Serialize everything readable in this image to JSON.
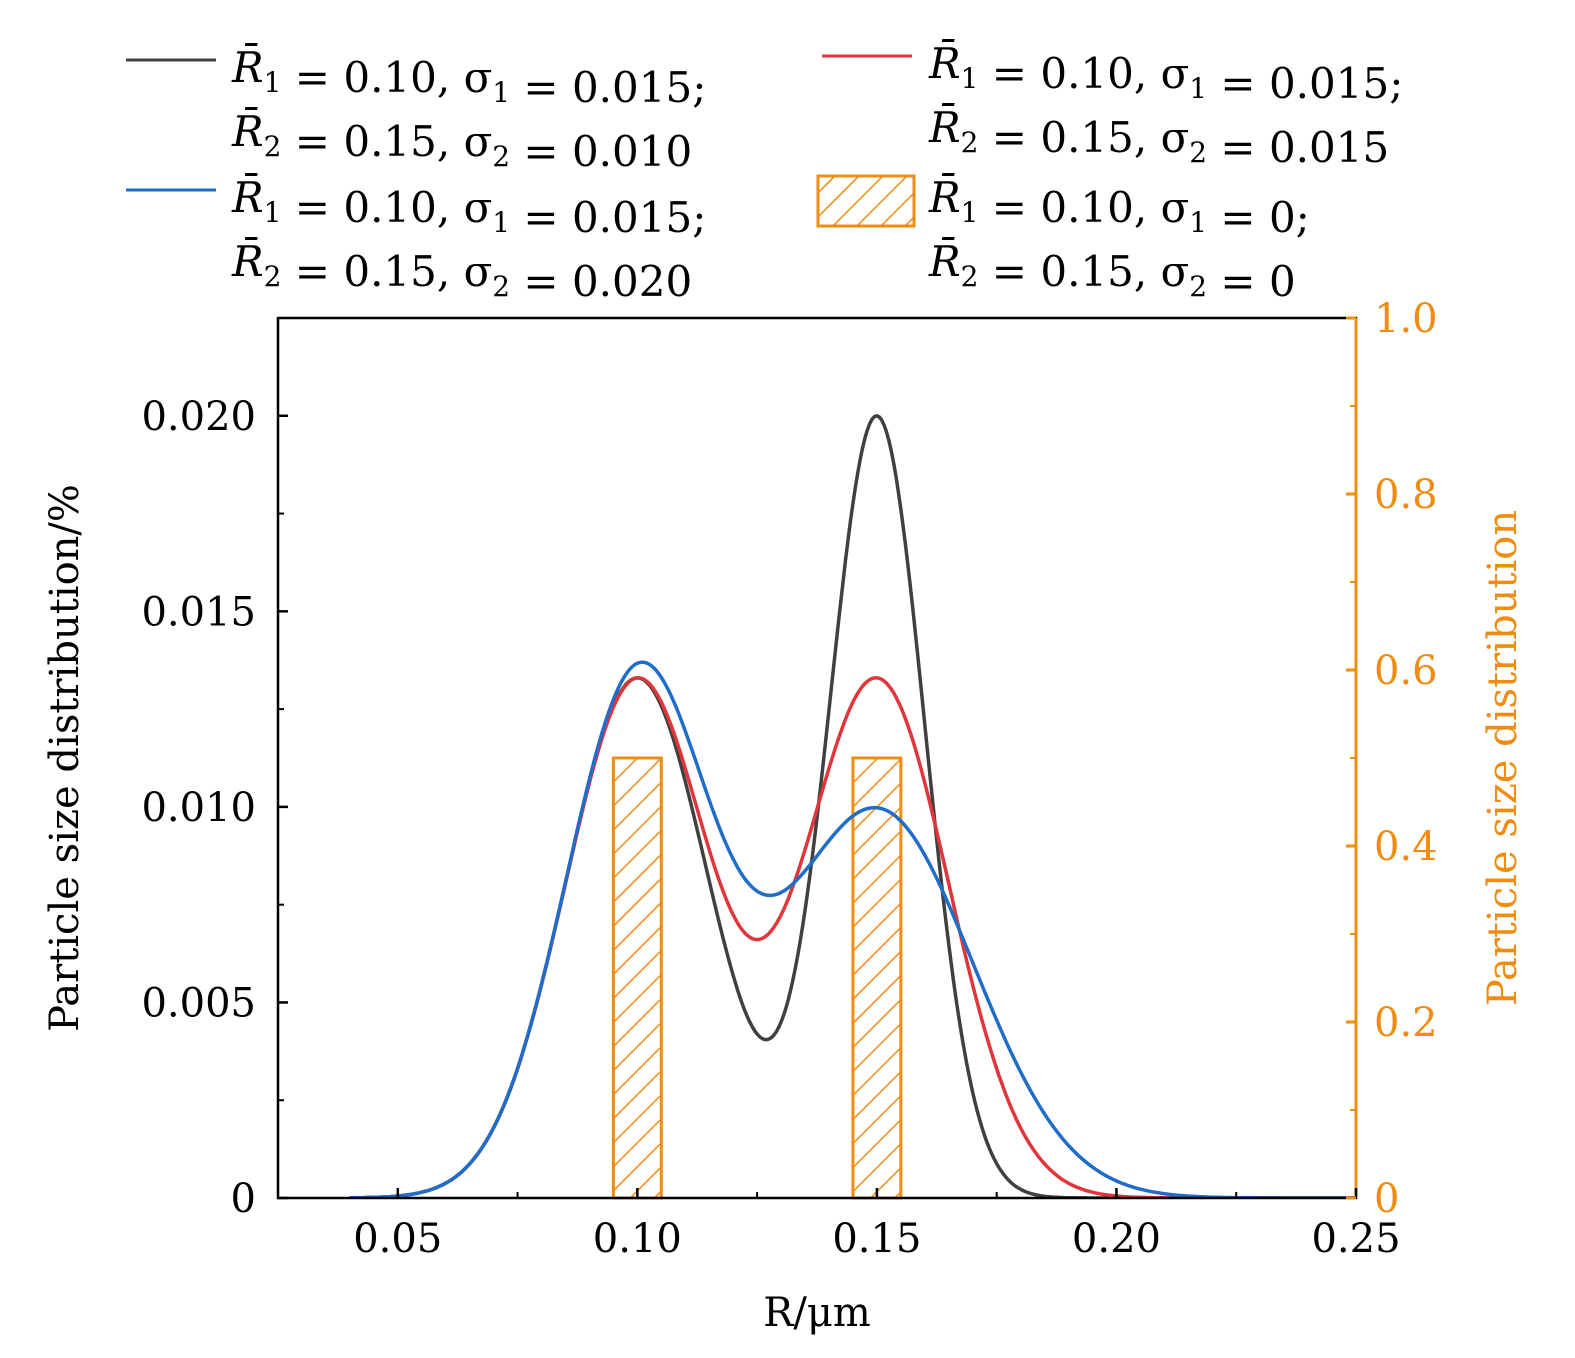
{
  "chart_data": {
    "type": "line",
    "xlabel": "R/μm",
    "ylabel": "Particle size distribution/%",
    "y2label": "Particle size distribution",
    "xlim": [
      0.025,
      0.25
    ],
    "ylim": [
      0,
      0.0225
    ],
    "y2lim": [
      0,
      1.0
    ],
    "x_ticks": [
      "0.05",
      "0.10",
      "0.15",
      "0.20",
      "0.25"
    ],
    "x_tick_values": [
      0.05,
      0.1,
      0.15,
      0.2,
      0.25
    ],
    "y_ticks": [
      "0",
      "0.005",
      "0.010",
      "0.015",
      "0.020"
    ],
    "y_tick_values": [
      0,
      0.005,
      0.01,
      0.015,
      0.02
    ],
    "y2_ticks": [
      "0",
      "0.2",
      "0.4",
      "0.6",
      "0.8",
      "1.0"
    ],
    "y2_tick_values": [
      0,
      0.2,
      0.4,
      0.6,
      0.8,
      1.0
    ],
    "series": [
      {
        "name": "R̄1 = 0.10, σ1 = 0.015; R̄2 = 0.15, σ2 = 0.010",
        "legend_line1": [
          "R̄",
          "1",
          " = 0.10, σ",
          "1",
          " = 0.015;"
        ],
        "legend_line2": [
          "R̄",
          "2",
          " = 0.15, σ",
          "2",
          " = 0.010"
        ],
        "color": "#404040",
        "R1": 0.1,
        "sigma1": 0.015,
        "R2": 0.15,
        "sigma2": 0.01,
        "peaks": [
          {
            "x": 0.1,
            "y": 0.0133
          },
          {
            "x": 0.15,
            "y": 0.02
          }
        ],
        "valley": {
          "x": 0.127,
          "y": 0.004
        }
      },
      {
        "name": "R̄1 = 0.10, σ1 = 0.015; R̄2 = 0.15, σ2 = 0.015",
        "legend_line1": [
          "R̄",
          "1",
          " = 0.10, σ",
          "1",
          " = 0.015;"
        ],
        "legend_line2": [
          "R̄",
          "2",
          " = 0.15, σ",
          "2",
          " = 0.015"
        ],
        "color": "#e0363b",
        "R1": 0.1,
        "sigma1": 0.015,
        "R2": 0.15,
        "sigma2": 0.015,
        "peaks": [
          {
            "x": 0.1,
            "y": 0.0133
          },
          {
            "x": 0.15,
            "y": 0.0133
          }
        ],
        "valley": {
          "x": 0.125,
          "y": 0.0066
        }
      },
      {
        "name": "R̄1 = 0.10, σ1 = 0.015; R̄2 = 0.15, σ2 = 0.020",
        "legend_line1": [
          "R̄",
          "1",
          " = 0.10, σ",
          "1",
          " = 0.015;"
        ],
        "legend_line2": [
          "R̄",
          "2",
          " = 0.15, σ",
          "2",
          " = 0.020"
        ],
        "color": "#1f6dc9",
        "R1": 0.1,
        "sigma1": 0.015,
        "R2": 0.15,
        "sigma2": 0.02,
        "peaks": [
          {
            "x": 0.1,
            "y": 0.0137
          },
          {
            "x": 0.15,
            "y": 0.01
          }
        ],
        "valley": {
          "x": 0.128,
          "y": 0.0078
        }
      }
    ],
    "bars": {
      "name": "R̄1 = 0.10, σ1 = 0; R̄2 = 0.15, σ2 = 0",
      "legend_line1": [
        "R̄",
        "1",
        " = 0.10, σ",
        "1",
        " = 0;"
      ],
      "legend_line2": [
        "R̄",
        "2",
        " = 0.15, σ",
        "2",
        " = 0"
      ],
      "color": "#ef8c12",
      "axis": "right",
      "hatch": "diagonal",
      "x": [
        0.1,
        0.15
      ],
      "values": [
        0.5,
        0.5
      ],
      "bar_width": 0.01
    }
  }
}
